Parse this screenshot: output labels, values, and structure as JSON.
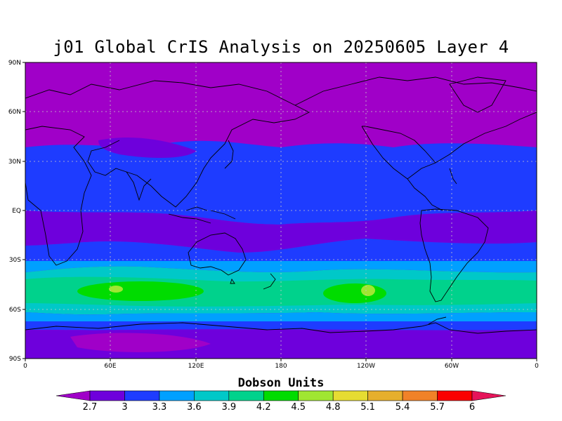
{
  "title": "j01 Global CrIS Analysis on 20250605 Layer 4",
  "colorbar": {
    "title": "Dobson Units",
    "ticks": [
      "2.7",
      "3",
      "3.3",
      "3.6",
      "3.9",
      "4.2",
      "4.5",
      "4.8",
      "5.1",
      "5.4",
      "5.7",
      "6"
    ],
    "colors": [
      "#a000c8",
      "#6e00dc",
      "#1e3cff",
      "#00a0ff",
      "#00c8c8",
      "#00d28c",
      "#00dc00",
      "#a0e632",
      "#e6dc32",
      "#e6af2d",
      "#f08228",
      "#fa0000",
      "#e6145a"
    ]
  },
  "axes": {
    "lat_labels": [
      "90N",
      "60N",
      "30N",
      "EQ",
      "30S",
      "60S",
      "90S"
    ],
    "lon_labels": [
      "0",
      "60E",
      "120E",
      "180",
      "120W",
      "60W",
      "0"
    ]
  },
  "chart_data": {
    "type": "heatmap",
    "title": "j01 Global CrIS Analysis on 20250605 Layer 4",
    "units": "Dobson Units",
    "levels": [
      2.7,
      3,
      3.3,
      3.6,
      3.9,
      4.2,
      4.5,
      4.8,
      5.1,
      5.4,
      5.7,
      6
    ],
    "xlim": [
      0,
      360
    ],
    "ylim": [
      -90,
      90
    ],
    "xticks": [
      "0",
      "60E",
      "120E",
      "180",
      "120W",
      "60W",
      "0"
    ],
    "yticks": [
      "90N",
      "60N",
      "30N",
      "EQ",
      "30S",
      "60S",
      "90S"
    ],
    "zonal_bands": [
      {
        "lat": [
          90,
          40
        ],
        "value": 2.7
      },
      {
        "lat": [
          40,
          25
        ],
        "value": 3.0
      },
      {
        "lat": [
          25,
          -5
        ],
        "value": 3.0
      },
      {
        "lat": [
          -5,
          -25
        ],
        "value": 2.7
      },
      {
        "lat": [
          -25,
          -35
        ],
        "value": 3.3
      },
      {
        "lat": [
          -35,
          -45
        ],
        "value": 3.6
      },
      {
        "lat": [
          -45,
          -60
        ],
        "value": 3.9
      },
      {
        "lat": [
          -60,
          -70
        ],
        "value": 3.3
      },
      {
        "lat": [
          -70,
          -90
        ],
        "value": 2.7
      }
    ],
    "maxima": [
      {
        "lon": 65,
        "lat": -50,
        "value": 4.5
      },
      {
        "lon": 240,
        "lat": -50,
        "value": 4.5
      }
    ],
    "grid": true
  }
}
